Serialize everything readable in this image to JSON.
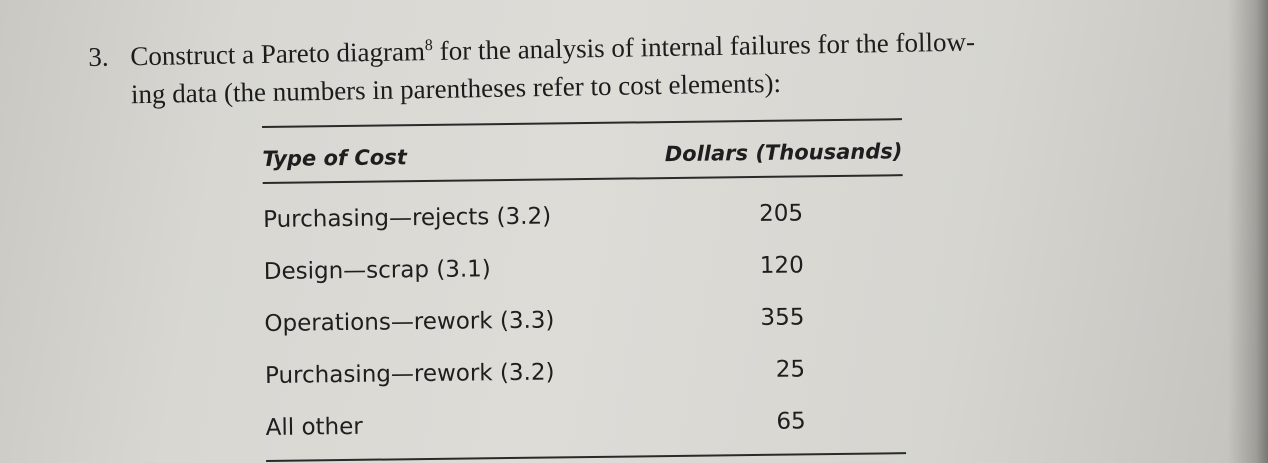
{
  "question": {
    "number": "3.",
    "line1": "Construct a Pareto diagram",
    "footnote": "8",
    "line1_rest": " for the analysis of internal failures for the follow-",
    "line2": "ing data (the numbers in parentheses refer to cost elements):"
  },
  "table": {
    "headers": {
      "type": "Type of Cost",
      "dollars": "Dollars (Thousands)"
    },
    "rows": [
      {
        "type": "Purchasing—rejects (3.2)",
        "dollars": "205"
      },
      {
        "type": "Design—scrap (3.1)",
        "dollars": "120"
      },
      {
        "type": "Operations—rework (3.3)",
        "dollars": "355"
      },
      {
        "type": "Purchasing—rework (3.2)",
        "dollars": "25"
      },
      {
        "type": "All other",
        "dollars": "65"
      }
    ]
  }
}
